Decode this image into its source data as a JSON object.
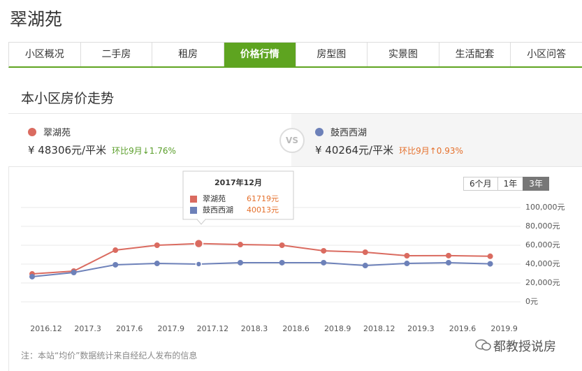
{
  "header": {
    "title": "翠湖苑"
  },
  "tabs": [
    {
      "label": "小区概况"
    },
    {
      "label": "二手房"
    },
    {
      "label": "租房"
    },
    {
      "label": "价格行情",
      "active": true
    },
    {
      "label": "房型图"
    },
    {
      "label": "实景图"
    },
    {
      "label": "生活配套"
    },
    {
      "label": "小区问答"
    }
  ],
  "section_title": "本小区房价走势",
  "compare": {
    "left": {
      "name": "翠湖苑",
      "color": "#da6b60",
      "price": "¥ 48306元/平米",
      "change": "环比9月↓1.76%",
      "change_color": "#5a9e2a"
    },
    "vs": "VS",
    "right": {
      "name": "鼓西西湖",
      "color": "#6d81b9",
      "price": "¥ 40264元/平米",
      "change": "环比9月↑0.93%",
      "change_color": "#e5702c"
    }
  },
  "ranges": [
    {
      "label": "6个月"
    },
    {
      "label": "1年"
    },
    {
      "label": "3年",
      "active": true
    }
  ],
  "chart_data": {
    "type": "line",
    "categories": [
      "2016.12",
      "2017.3",
      "2017.6",
      "2017.9",
      "2017.12",
      "2018.3",
      "2018.6",
      "2018.9",
      "2018.12",
      "2019.3",
      "2019.6",
      "2019.9"
    ],
    "series": [
      {
        "name": "翠湖苑",
        "color": "#da6b60",
        "values": [
          29600,
          32600,
          54800,
          60000,
          61719,
          60700,
          60000,
          54100,
          52600,
          48900,
          49000,
          48300
        ],
        "value_labels": [
          null,
          null,
          null,
          null,
          "61719元",
          null,
          null,
          null,
          null,
          null,
          null,
          null
        ]
      },
      {
        "name": "鼓西西湖",
        "color": "#6d81b9",
        "values": [
          26700,
          31100,
          39300,
          40700,
          40013,
          41500,
          41500,
          41500,
          38500,
          40700,
          41500,
          40300
        ],
        "value_labels": [
          null,
          null,
          null,
          null,
          "40013元",
          null,
          null,
          null,
          null,
          null,
          null,
          null
        ]
      }
    ],
    "tooltip_title": "2017年12月",
    "ylim": [
      -20000,
      110000
    ],
    "yticks": [
      {
        "value": 0,
        "label": "0元"
      },
      {
        "value": 20000,
        "label": "20,000元"
      },
      {
        "value": 40000,
        "label": "40,000元"
      },
      {
        "value": 60000,
        "label": "60,000元"
      },
      {
        "value": 80000,
        "label": "80,000元"
      },
      {
        "value": 100000,
        "label": "100,000元"
      }
    ],
    "grid": true
  },
  "footnote": "注：本站“均价”数据统计来自经纪人发布的信息",
  "watermark": "都教授说房"
}
